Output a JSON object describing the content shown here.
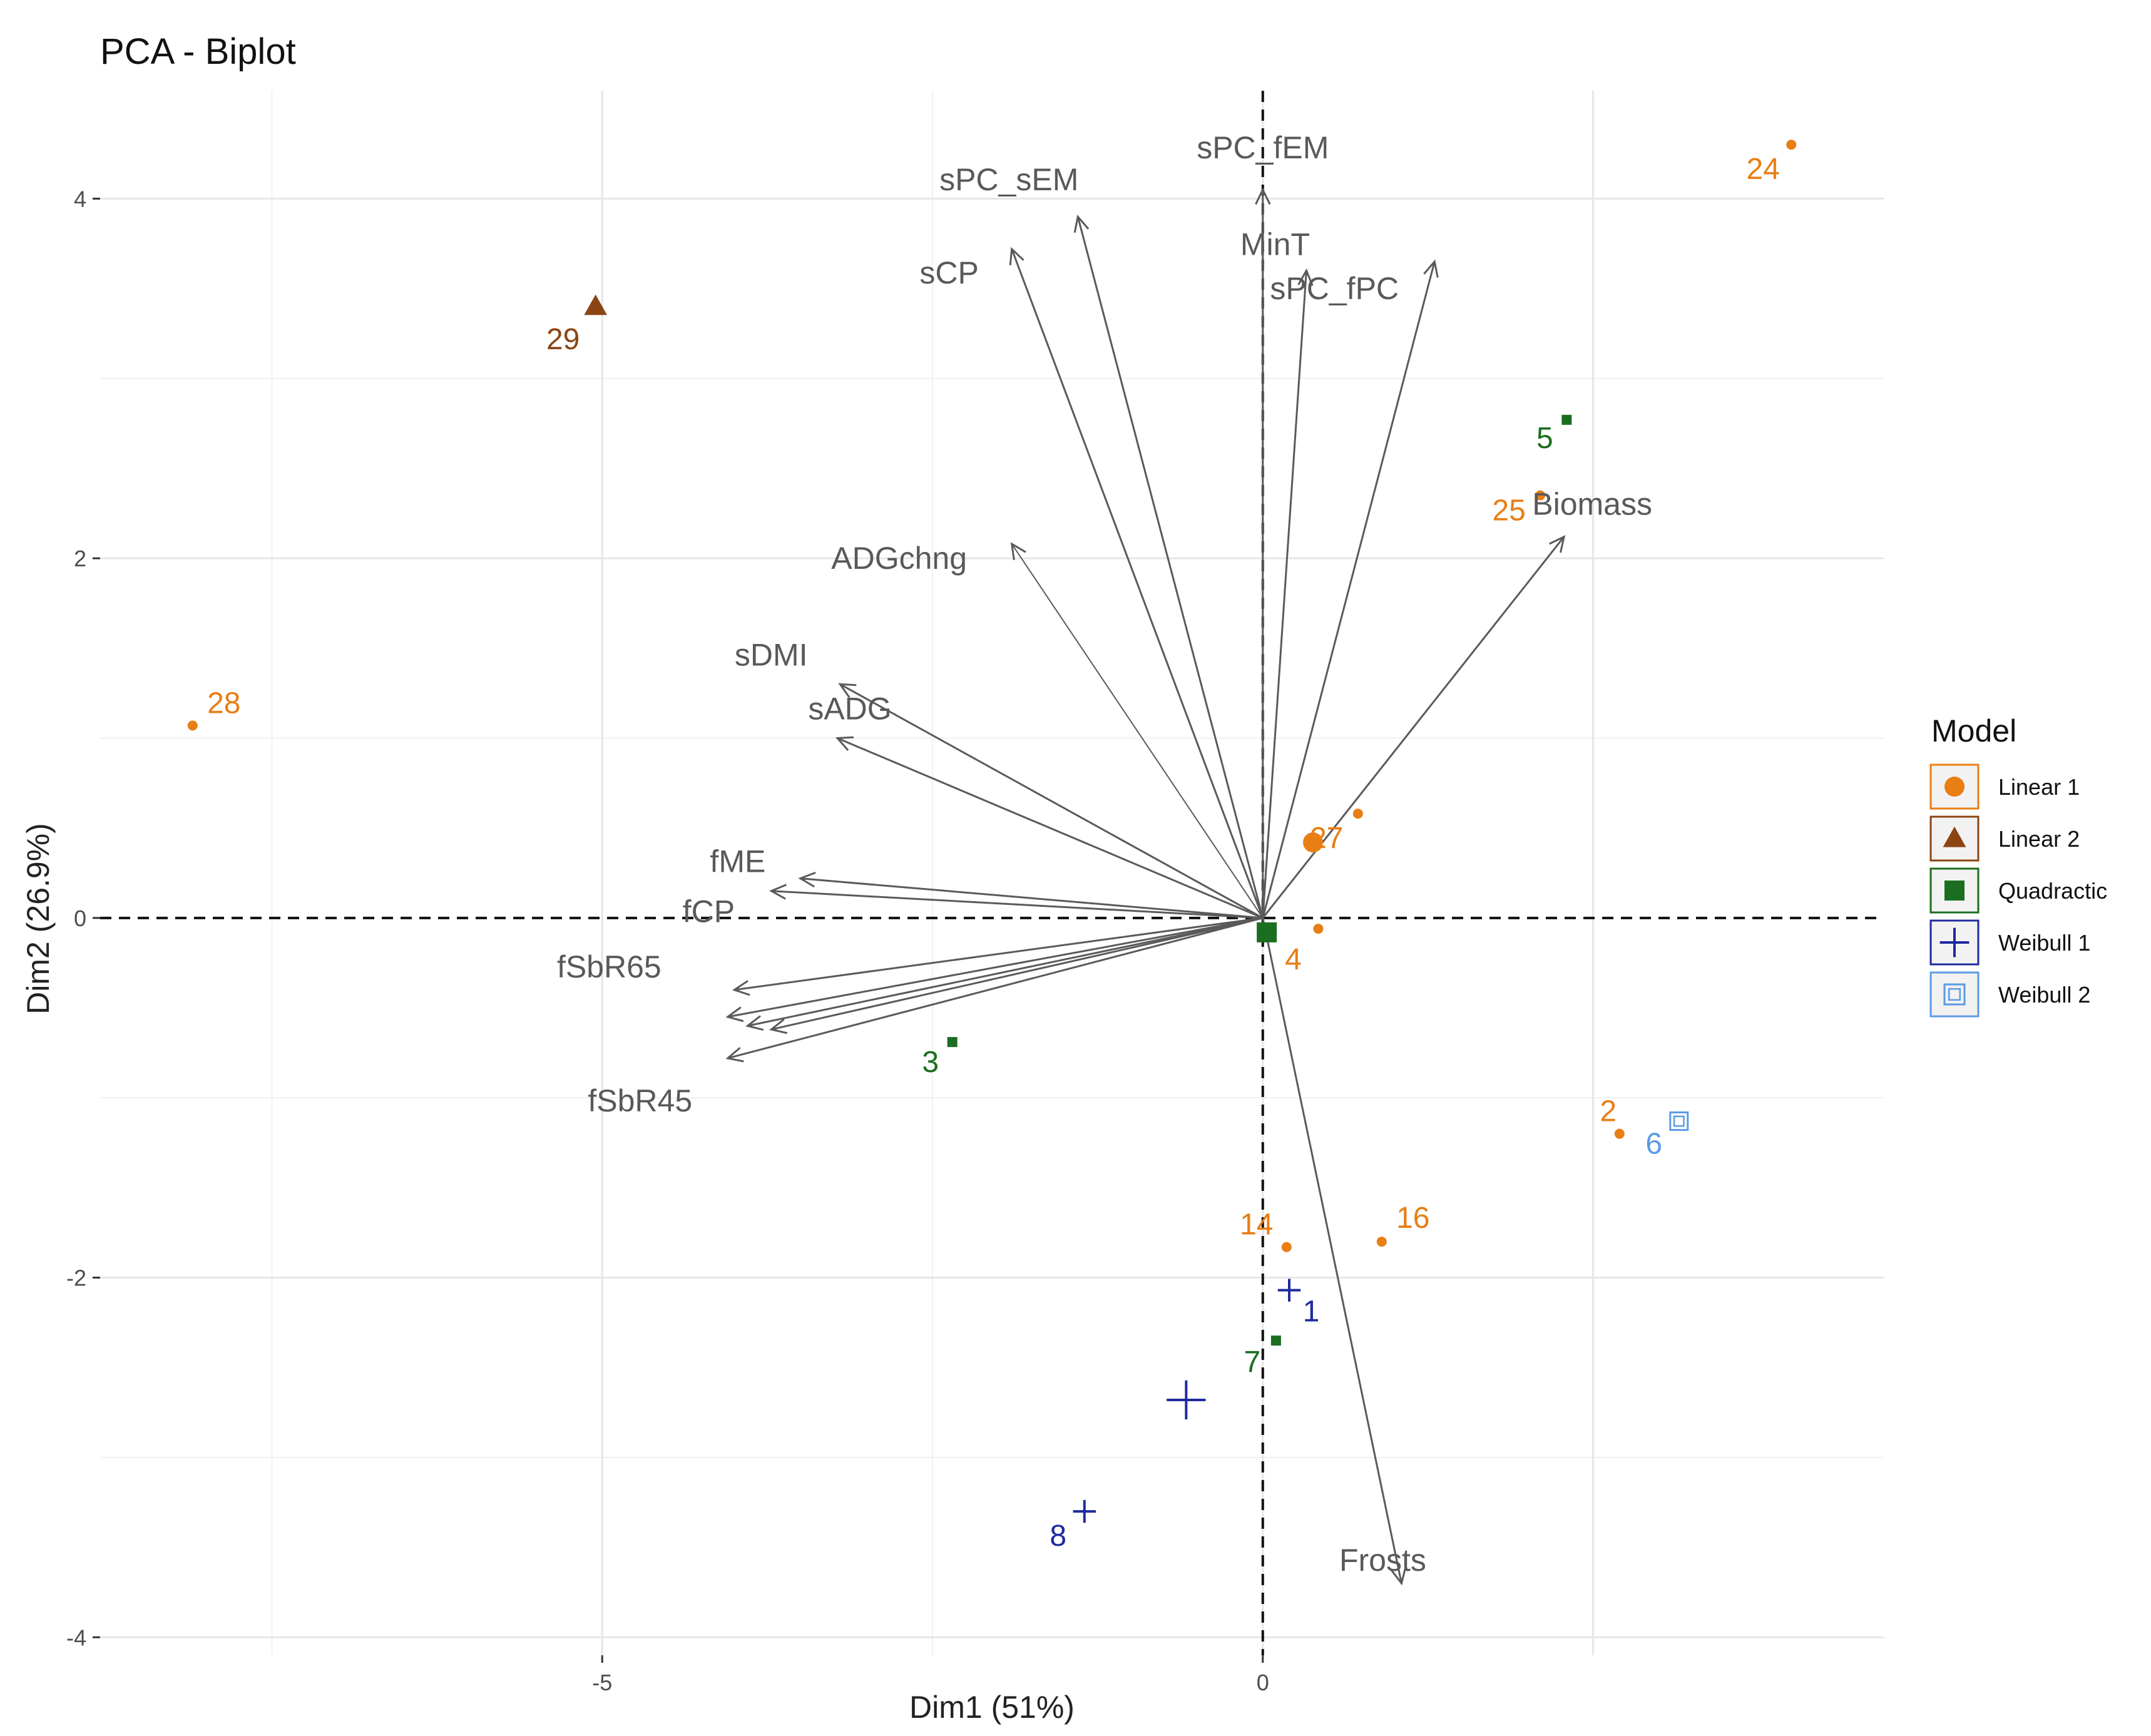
{
  "chart_data": {
    "type": "scatter",
    "title": "PCA - Biplot",
    "xlabel": "Dim1 (51%)",
    "ylabel": "Dim2 (26.9%)",
    "xlim": [
      -8.8,
      4.7
    ],
    "ylim": [
      -4.1,
      4.6
    ],
    "x_ticks": [
      {
        "value": -5,
        "label": "-5"
      },
      {
        "value": 0,
        "label": "0"
      }
    ],
    "y_ticks": [
      {
        "value": 4,
        "label": "4"
      },
      {
        "value": 2,
        "label": "2"
      },
      {
        "value": 0,
        "label": "0"
      },
      {
        "value": -2,
        "label": "-2"
      },
      {
        "value": -4,
        "label": "-4"
      }
    ],
    "grid": true,
    "variables": [
      {
        "name": "sPC_sEM",
        "x": -1.4,
        "y": 3.9
      },
      {
        "name": "sPC_fEM",
        "x": 0.0,
        "y": 4.05
      },
      {
        "name": "MinT",
        "x": 0.33,
        "y": 3.6
      },
      {
        "name": "sPC_fPC",
        "x": 1.3,
        "y": 3.65
      },
      {
        "name": "sCP",
        "x": -1.9,
        "y": 3.72
      },
      {
        "name": "Biomass",
        "x": 2.28,
        "y": 2.12
      },
      {
        "name": "ADGchng",
        "x": -1.9,
        "y": 2.08
      },
      {
        "name": "sDMI",
        "x": -3.2,
        "y": 1.3
      },
      {
        "name": "sADG",
        "x": -3.22,
        "y": 1.0
      },
      {
        "name": "fME",
        "x": -3.5,
        "y": 0.22
      },
      {
        "name": "fCP",
        "x": -3.72,
        "y": 0.15
      },
      {
        "name": "fSbR65",
        "x": -4.0,
        "y": -0.4
      },
      {
        "name": "",
        "x": -4.05,
        "y": -0.55
      },
      {
        "name": "",
        "x": -3.9,
        "y": -0.6
      },
      {
        "name": "",
        "x": -3.72,
        "y": -0.62
      },
      {
        "name": "fSbR45",
        "x": -4.05,
        "y": -0.78
      },
      {
        "name": "Frosts",
        "x": 1.05,
        "y": -3.7
      }
    ],
    "series": [
      {
        "name": "Linear 1",
        "shape": "circle",
        "color": "#E87E14",
        "points": [
          {
            "label": "24",
            "x": 4.0,
            "y": 4.3
          },
          {
            "label": "28",
            "x": -8.1,
            "y": 1.07
          },
          {
            "label": "25",
            "x": 2.1,
            "y": 2.35
          },
          {
            "label": "27",
            "x": 0.72,
            "y": 0.58
          },
          {
            "label": "4",
            "x": 0.42,
            "y": -0.06
          },
          {
            "label": "2",
            "x": 2.7,
            "y": -1.2
          },
          {
            "label": "14",
            "x": 0.18,
            "y": -1.83
          },
          {
            "label": "16",
            "x": 0.9,
            "y": -1.8
          }
        ]
      },
      {
        "name": "Linear 2",
        "shape": "triangle",
        "color": "#8B4513",
        "points": [
          {
            "label": "29",
            "x": -5.05,
            "y": 3.4
          }
        ]
      },
      {
        "name": "Quadractic",
        "shape": "square",
        "color": "#1B6E20",
        "points": [
          {
            "label": "5",
            "x": 2.3,
            "y": 2.77
          },
          {
            "label": "3",
            "x": -2.35,
            "y": -0.69
          },
          {
            "label": "7",
            "x": 0.1,
            "y": -2.35
          }
        ]
      },
      {
        "name": "Weibull 1",
        "shape": "plus",
        "color": "#1F2A9E",
        "points": [
          {
            "label": "1",
            "x": 0.2,
            "y": -2.07
          },
          {
            "label": "8",
            "x": -1.35,
            "y": -3.3
          }
        ]
      },
      {
        "name": "Weibull 2",
        "shape": "boxed",
        "color": "#5B9BE6",
        "points": [
          {
            "label": "6",
            "x": 3.15,
            "y": -1.13
          }
        ]
      }
    ],
    "centroids": [
      {
        "series": "Linear 1",
        "x": 0.38,
        "y": 0.42
      },
      {
        "series": "Quadractic",
        "x": 0.03,
        "y": -0.08
      },
      {
        "series": "Weibull 1",
        "x": -0.58,
        "y": -2.68
      }
    ],
    "legend": {
      "title": "Model",
      "placement": "right",
      "items": [
        {
          "label": "Linear 1",
          "shape": "circle",
          "color": "#E87E14"
        },
        {
          "label": "Linear 2",
          "shape": "triangle",
          "color": "#8B4513"
        },
        {
          "label": "Quadractic",
          "shape": "square",
          "color": "#1B6E20"
        },
        {
          "label": "Weibull 1",
          "shape": "plus",
          "color": "#1F2A9E"
        },
        {
          "label": "Weibull 2",
          "shape": "boxed",
          "color": "#5B9BE6"
        }
      ]
    }
  }
}
